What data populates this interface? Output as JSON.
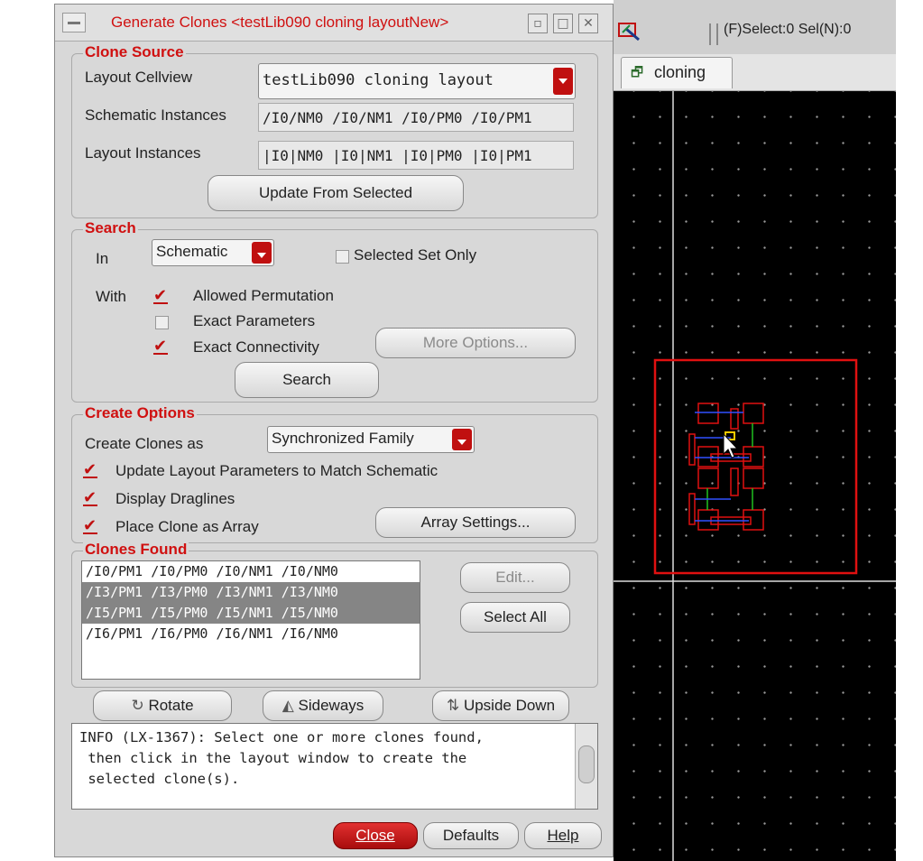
{
  "layout_window": {
    "toolbar": {
      "status": "(F)Select:0   Sel(N):0"
    },
    "tab": {
      "label": "cloning"
    },
    "colors": {
      "highlight": "#e01010",
      "net_green": "#20c020",
      "net_blue": "#3050ff"
    }
  },
  "dialog": {
    "title": "Generate Clones <testLib090 cloning layoutNew>",
    "clone_source": {
      "group_title": "Clone Source",
      "layout_cellview_label": "Layout Cellview",
      "layout_cellview_value": "testLib090 cloning layout",
      "schematic_instances_label": "Schematic Instances",
      "schematic_instances_value": "/I0/NM0 /I0/NM1 /I0/PM0 /I0/PM1",
      "layout_instances_label": "Layout Instances",
      "layout_instances_value": "|I0|NM0 |I0|NM1 |I0|PM0 |I0|PM1",
      "update_button": "Update From Selected"
    },
    "search": {
      "group_title": "Search",
      "in_label": "In",
      "in_value": "Schematic",
      "selected_set_only": "Selected Set Only",
      "with_label": "With",
      "allowed_permutation": "Allowed Permutation",
      "exact_parameters": "Exact Parameters",
      "exact_connectivity": "Exact Connectivity",
      "more_options_button": "More Options...",
      "search_button": "Search"
    },
    "create_options": {
      "group_title": "Create Options",
      "create_as_label": "Create Clones as",
      "create_as_value": "Synchronized Family",
      "update_params": "Update Layout Parameters to Match Schematic",
      "display_draglines": "Display Draglines",
      "place_as_array": "Place Clone as Array",
      "array_settings_button": "Array Settings..."
    },
    "clones_found": {
      "group_title": "Clones Found",
      "rows": [
        "/I0/PM1 /I0/PM0 /I0/NM1 /I0/NM0",
        "/I3/PM1 /I3/PM0 /I3/NM1 /I3/NM0",
        "/I5/PM1 /I5/PM0 /I5/NM1 /I5/NM0",
        "/I6/PM1 /I6/PM0 /I6/NM1 /I6/NM0"
      ],
      "edit_button": "Edit...",
      "select_all_button": "Select All"
    },
    "transform": {
      "rotate": "Rotate",
      "sideways": "Sideways",
      "upside_down": "Upside Down"
    },
    "info_lines": [
      "INFO (LX-1367): Select one or more clones found,",
      " then click in the layout window to create the",
      " selected clone(s)."
    ],
    "footer": {
      "close": "Close",
      "defaults": "Defaults",
      "help": "Help"
    }
  }
}
